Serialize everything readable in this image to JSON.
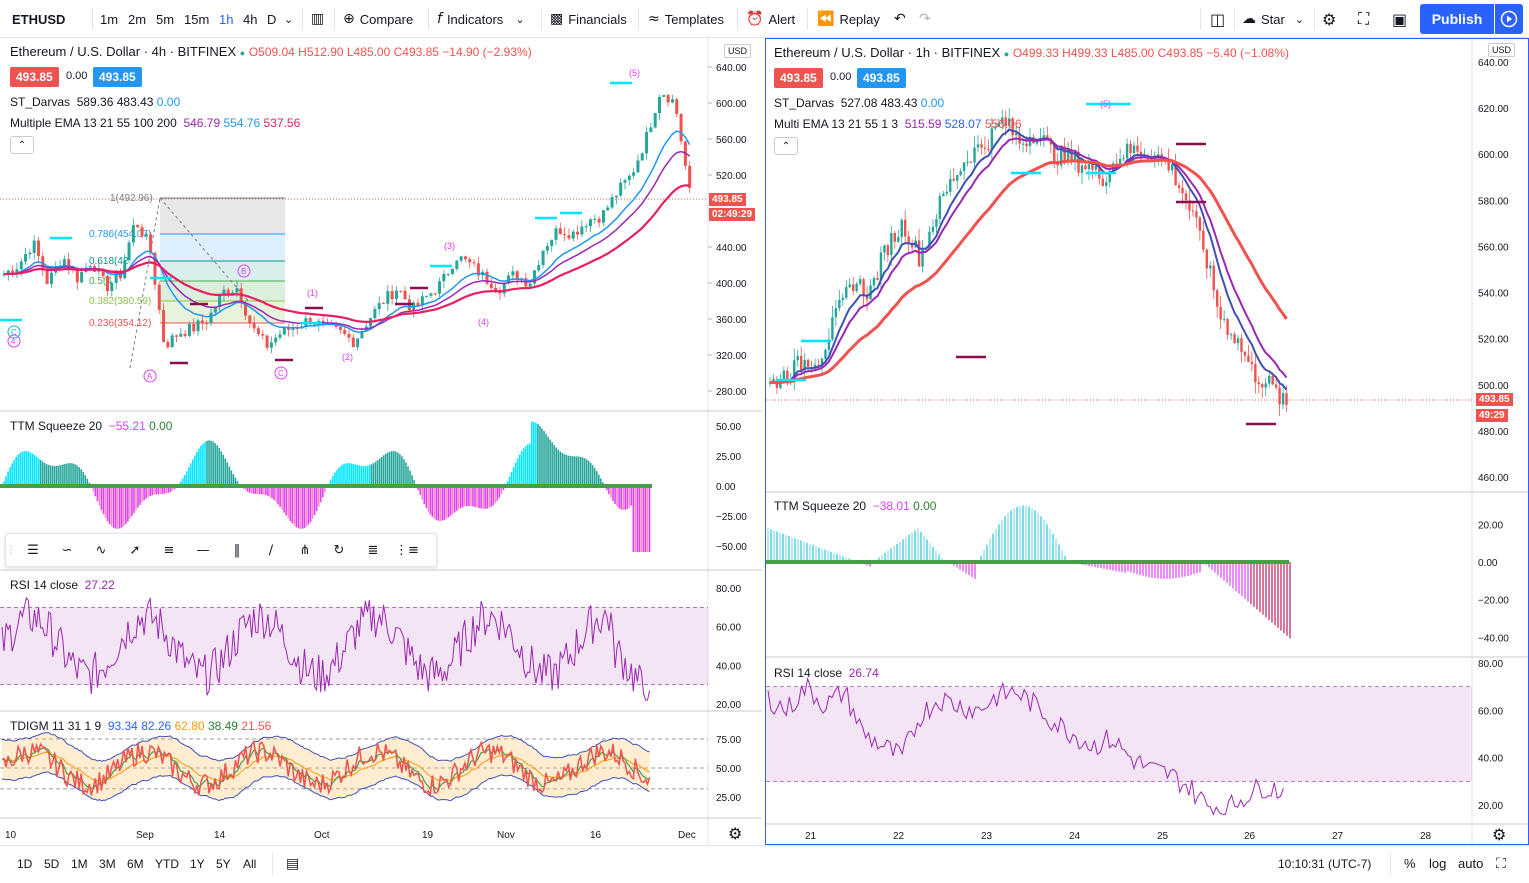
{
  "toolbar": {
    "symbol": "ETHUSD",
    "timeframes": [
      "1m",
      "2m",
      "5m",
      "15m",
      "1h",
      "4h",
      "D"
    ],
    "active_timeframe": "1h",
    "compare": "Compare",
    "indicators": "Indicators",
    "financials": "Financials",
    "templates": "Templates",
    "alert": "Alert",
    "replay": "Replay",
    "star": "Star",
    "publish": "Publish"
  },
  "left_chart": {
    "title": "Ethereum / U.S. Dollar · 4h · BITFINEX",
    "ohlc": "O509.04 H512.90 L485.00 C493.85 −14.90 (−2.93%)",
    "bid": "493.85",
    "spread": "0.00",
    "ask": "493.85",
    "indicator1": "ST_Darvas",
    "indicator1_values": "589.36 483.43",
    "indicator1_extra": "0.00",
    "indicator2": "Multiple EMA 13 21 55 100 200",
    "indicator2_v1": "546.79",
    "indicator2_v2": "554.76",
    "indicator2_v3": "537.56",
    "currency": "USD",
    "last_price": "493.85",
    "countdown": "02:49:29",
    "y_ticks": [
      "640.00",
      "600.00",
      "560.00",
      "520.00",
      "480.00",
      "440.00",
      "400.00",
      "360.00",
      "320.00",
      "280.00"
    ],
    "x_ticks": [
      "10",
      "Sep",
      "14",
      "Oct",
      "19",
      "Nov",
      "16",
      "Dec"
    ],
    "fib_labels": [
      "1(492.96)",
      "0.786(454.07)",
      "0.618(42",
      "0.5(4",
      "0.382(380.59)",
      "0.236(354.12)"
    ],
    "wave_labels": [
      "(5)",
      "(3)",
      "(1)",
      "(4)",
      "(2)",
      "A",
      "B",
      "C",
      "4",
      "C"
    ],
    "ttm": {
      "name": "TTM Squeeze 20",
      "v1": "−55.21",
      "v2": "0.00",
      "ticks": [
        "50.00",
        "25.00",
        "0.00",
        "−25.00",
        "−50.00"
      ]
    },
    "rsi": {
      "name": "RSI 14 close",
      "value": "27.22",
      "ticks": [
        "80.00",
        "60.00",
        "40.00",
        "20.00"
      ]
    },
    "tdi": {
      "name": "TDIGM 11 31 1 9",
      "v1": "93.34",
      "v2": "82.26",
      "v3": "62.80",
      "v4": "38.49",
      "v5": "21.56",
      "ticks": [
        "75.00",
        "50.00",
        "25.00"
      ]
    }
  },
  "right_chart": {
    "title": "Ethereum / U.S. Dollar · 1h · BITFINEX",
    "ohlc": "O499.33 H499.33 L485.00 C493.85 −5.40 (−1.08%)",
    "bid": "493.85",
    "spread": "0.00",
    "ask": "493.85",
    "indicator1": "ST_Darvas",
    "indicator1_values": "527.08 483.43",
    "indicator1_extra": "0.00",
    "indicator2": "Multi EMA 13 21 55 1 3",
    "indicator2_v1": "515.59",
    "indicator2_v2": "528.07",
    "indicator2_v3": "556.06",
    "currency": "USD",
    "last_price": "493.85",
    "countdown": "49:29",
    "y_ticks": [
      "640.00",
      "620.00",
      "600.00",
      "580.00",
      "560.00",
      "540.00",
      "520.00",
      "500.00",
      "480.00",
      "460.00"
    ],
    "x_ticks": [
      "21",
      "22",
      "23",
      "24",
      "25",
      "26",
      "27",
      "28"
    ],
    "wave_label": "(5)",
    "ttm": {
      "name": "TTM Squeeze 20",
      "v1": "−38.01",
      "v2": "0.00",
      "ticks": [
        "20.00",
        "0.00",
        "−20.00",
        "−40.00"
      ]
    },
    "rsi": {
      "name": "RSI 14 close",
      "value": "26.74",
      "ticks": [
        "80.00",
        "60.00",
        "40.00",
        "20.00"
      ]
    }
  },
  "bottom": {
    "ranges": [
      "1D",
      "5D",
      "1M",
      "3M",
      "6M",
      "YTD",
      "1Y",
      "5Y",
      "All"
    ],
    "time": "10:10:31 (UTC-7)",
    "percent": "%",
    "log": "log",
    "auto": "auto"
  },
  "colors": {
    "accent": "#2962ff",
    "down": "#ef5350",
    "up": "#26a69a",
    "rsi": "#9c27b0",
    "darvas": "#00e5ff"
  }
}
